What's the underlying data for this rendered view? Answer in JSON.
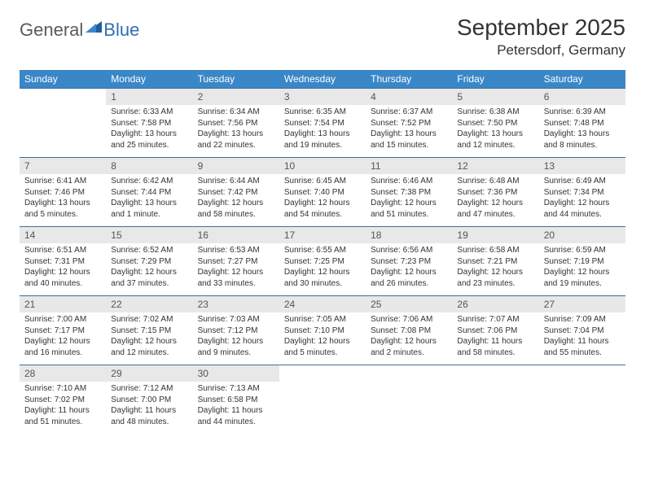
{
  "logo": {
    "general": "General",
    "blue": "Blue"
  },
  "title": "September 2025",
  "location": "Petersdorf, Germany",
  "colors": {
    "header_bg": "#3a87c8",
    "header_text": "#ffffff",
    "daynum_bg": "#e8e8e8",
    "daynum_text": "#555555",
    "divider": "#3a6fa0",
    "body_text": "#333333",
    "logo_gray": "#5a5a5a",
    "logo_blue": "#2d6fb5"
  },
  "weekdays": [
    "Sunday",
    "Monday",
    "Tuesday",
    "Wednesday",
    "Thursday",
    "Friday",
    "Saturday"
  ],
  "weeks": [
    {
      "nums": [
        "",
        "1",
        "2",
        "3",
        "4",
        "5",
        "6"
      ],
      "cells": [
        null,
        {
          "sunrise": "Sunrise: 6:33 AM",
          "sunset": "Sunset: 7:58 PM",
          "day1": "Daylight: 13 hours",
          "day2": "and 25 minutes."
        },
        {
          "sunrise": "Sunrise: 6:34 AM",
          "sunset": "Sunset: 7:56 PM",
          "day1": "Daylight: 13 hours",
          "day2": "and 22 minutes."
        },
        {
          "sunrise": "Sunrise: 6:35 AM",
          "sunset": "Sunset: 7:54 PM",
          "day1": "Daylight: 13 hours",
          "day2": "and 19 minutes."
        },
        {
          "sunrise": "Sunrise: 6:37 AM",
          "sunset": "Sunset: 7:52 PM",
          "day1": "Daylight: 13 hours",
          "day2": "and 15 minutes."
        },
        {
          "sunrise": "Sunrise: 6:38 AM",
          "sunset": "Sunset: 7:50 PM",
          "day1": "Daylight: 13 hours",
          "day2": "and 12 minutes."
        },
        {
          "sunrise": "Sunrise: 6:39 AM",
          "sunset": "Sunset: 7:48 PM",
          "day1": "Daylight: 13 hours",
          "day2": "and 8 minutes."
        }
      ]
    },
    {
      "nums": [
        "7",
        "8",
        "9",
        "10",
        "11",
        "12",
        "13"
      ],
      "cells": [
        {
          "sunrise": "Sunrise: 6:41 AM",
          "sunset": "Sunset: 7:46 PM",
          "day1": "Daylight: 13 hours",
          "day2": "and 5 minutes."
        },
        {
          "sunrise": "Sunrise: 6:42 AM",
          "sunset": "Sunset: 7:44 PM",
          "day1": "Daylight: 13 hours",
          "day2": "and 1 minute."
        },
        {
          "sunrise": "Sunrise: 6:44 AM",
          "sunset": "Sunset: 7:42 PM",
          "day1": "Daylight: 12 hours",
          "day2": "and 58 minutes."
        },
        {
          "sunrise": "Sunrise: 6:45 AM",
          "sunset": "Sunset: 7:40 PM",
          "day1": "Daylight: 12 hours",
          "day2": "and 54 minutes."
        },
        {
          "sunrise": "Sunrise: 6:46 AM",
          "sunset": "Sunset: 7:38 PM",
          "day1": "Daylight: 12 hours",
          "day2": "and 51 minutes."
        },
        {
          "sunrise": "Sunrise: 6:48 AM",
          "sunset": "Sunset: 7:36 PM",
          "day1": "Daylight: 12 hours",
          "day2": "and 47 minutes."
        },
        {
          "sunrise": "Sunrise: 6:49 AM",
          "sunset": "Sunset: 7:34 PM",
          "day1": "Daylight: 12 hours",
          "day2": "and 44 minutes."
        }
      ]
    },
    {
      "nums": [
        "14",
        "15",
        "16",
        "17",
        "18",
        "19",
        "20"
      ],
      "cells": [
        {
          "sunrise": "Sunrise: 6:51 AM",
          "sunset": "Sunset: 7:31 PM",
          "day1": "Daylight: 12 hours",
          "day2": "and 40 minutes."
        },
        {
          "sunrise": "Sunrise: 6:52 AM",
          "sunset": "Sunset: 7:29 PM",
          "day1": "Daylight: 12 hours",
          "day2": "and 37 minutes."
        },
        {
          "sunrise": "Sunrise: 6:53 AM",
          "sunset": "Sunset: 7:27 PM",
          "day1": "Daylight: 12 hours",
          "day2": "and 33 minutes."
        },
        {
          "sunrise": "Sunrise: 6:55 AM",
          "sunset": "Sunset: 7:25 PM",
          "day1": "Daylight: 12 hours",
          "day2": "and 30 minutes."
        },
        {
          "sunrise": "Sunrise: 6:56 AM",
          "sunset": "Sunset: 7:23 PM",
          "day1": "Daylight: 12 hours",
          "day2": "and 26 minutes."
        },
        {
          "sunrise": "Sunrise: 6:58 AM",
          "sunset": "Sunset: 7:21 PM",
          "day1": "Daylight: 12 hours",
          "day2": "and 23 minutes."
        },
        {
          "sunrise": "Sunrise: 6:59 AM",
          "sunset": "Sunset: 7:19 PM",
          "day1": "Daylight: 12 hours",
          "day2": "and 19 minutes."
        }
      ]
    },
    {
      "nums": [
        "21",
        "22",
        "23",
        "24",
        "25",
        "26",
        "27"
      ],
      "cells": [
        {
          "sunrise": "Sunrise: 7:00 AM",
          "sunset": "Sunset: 7:17 PM",
          "day1": "Daylight: 12 hours",
          "day2": "and 16 minutes."
        },
        {
          "sunrise": "Sunrise: 7:02 AM",
          "sunset": "Sunset: 7:15 PM",
          "day1": "Daylight: 12 hours",
          "day2": "and 12 minutes."
        },
        {
          "sunrise": "Sunrise: 7:03 AM",
          "sunset": "Sunset: 7:12 PM",
          "day1": "Daylight: 12 hours",
          "day2": "and 9 minutes."
        },
        {
          "sunrise": "Sunrise: 7:05 AM",
          "sunset": "Sunset: 7:10 PM",
          "day1": "Daylight: 12 hours",
          "day2": "and 5 minutes."
        },
        {
          "sunrise": "Sunrise: 7:06 AM",
          "sunset": "Sunset: 7:08 PM",
          "day1": "Daylight: 12 hours",
          "day2": "and 2 minutes."
        },
        {
          "sunrise": "Sunrise: 7:07 AM",
          "sunset": "Sunset: 7:06 PM",
          "day1": "Daylight: 11 hours",
          "day2": "and 58 minutes."
        },
        {
          "sunrise": "Sunrise: 7:09 AM",
          "sunset": "Sunset: 7:04 PM",
          "day1": "Daylight: 11 hours",
          "day2": "and 55 minutes."
        }
      ]
    },
    {
      "nums": [
        "28",
        "29",
        "30",
        "",
        "",
        "",
        ""
      ],
      "cells": [
        {
          "sunrise": "Sunrise: 7:10 AM",
          "sunset": "Sunset: 7:02 PM",
          "day1": "Daylight: 11 hours",
          "day2": "and 51 minutes."
        },
        {
          "sunrise": "Sunrise: 7:12 AM",
          "sunset": "Sunset: 7:00 PM",
          "day1": "Daylight: 11 hours",
          "day2": "and 48 minutes."
        },
        {
          "sunrise": "Sunrise: 7:13 AM",
          "sunset": "Sunset: 6:58 PM",
          "day1": "Daylight: 11 hours",
          "day2": "and 44 minutes."
        },
        null,
        null,
        null,
        null
      ]
    }
  ]
}
